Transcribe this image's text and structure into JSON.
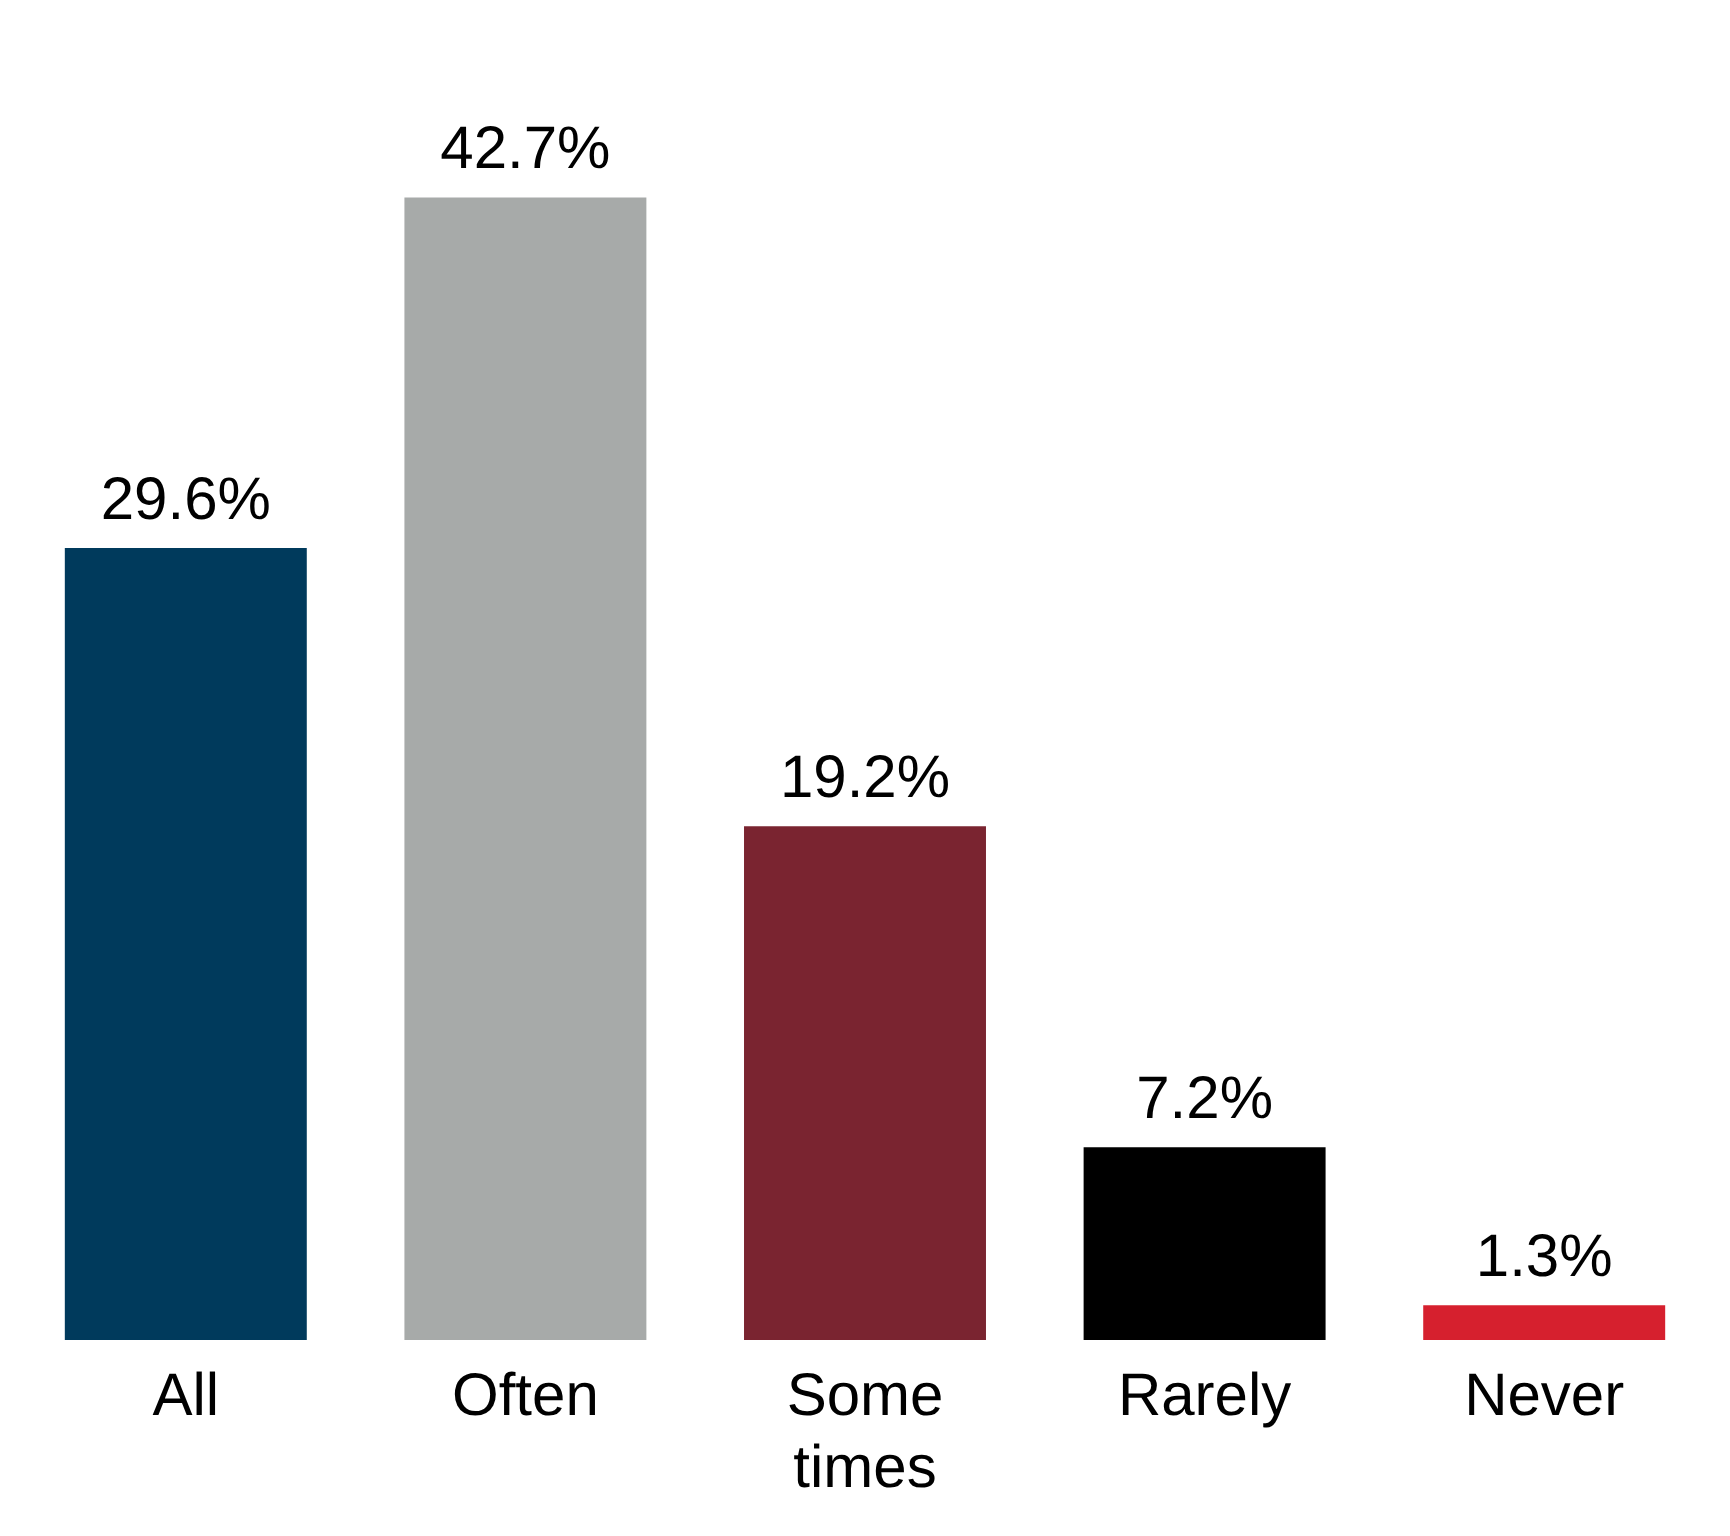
{
  "chart_data": {
    "type": "bar",
    "categories": [
      "All",
      "Often",
      "Some times",
      "Rarely",
      "Never"
    ],
    "values": [
      29.6,
      42.7,
      19.2,
      7.2,
      1.3
    ],
    "colors": [
      "#003a5c",
      "#a7aaa9",
      "#7a2430",
      "#000000",
      "#d6202e"
    ],
    "value_labels": [
      "29.6%",
      "42.7%",
      "19.2%",
      "7.2%",
      "1.3%"
    ],
    "grid": false,
    "legend": false
  }
}
